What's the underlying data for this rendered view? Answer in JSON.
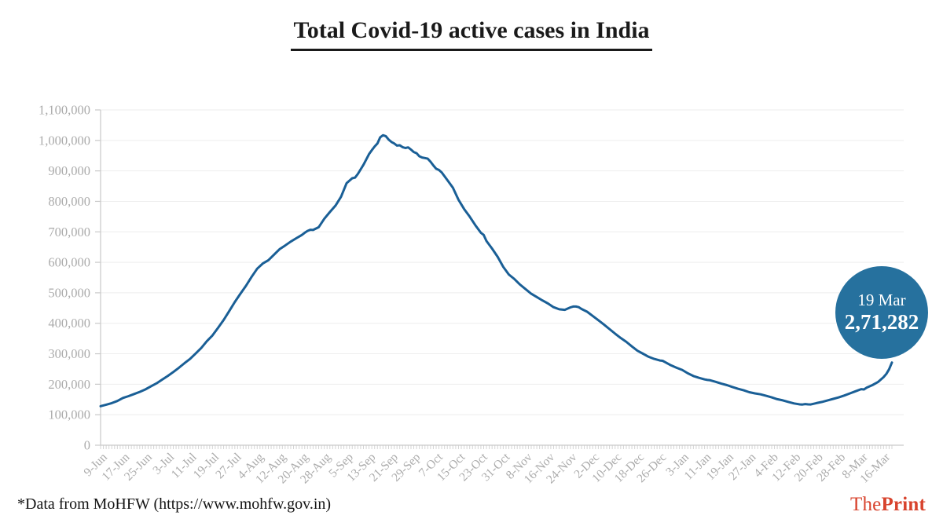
{
  "title": "Total Covid-19 active cases in India",
  "badge": {
    "date": "19 Mar",
    "value": "2,71,282"
  },
  "footer": {
    "source_note": "*Data from MoHFW (https://www.mohfw.gov.in)"
  },
  "logo": {
    "the": "The",
    "print": "Print"
  },
  "colors": {
    "line": "#1A5F96",
    "badge": "#26719E",
    "logo": "#D8432D",
    "grid": "#EEEEEE",
    "axis": "#C9C9C9",
    "minor_tick": "#D4D4D4",
    "tick_label": "#ABABAB",
    "title_text": "#1A1A1A"
  },
  "chart_data": {
    "type": "line",
    "title": "Total Covid-19 active cases in India",
    "xlabel": "",
    "ylabel": "",
    "x_unit": "days since 9-Jun-2020",
    "ylim": [
      0,
      1100000
    ],
    "y_tick_step": 100000,
    "grid": "horizontal",
    "legend": "none",
    "x_tick_interval_days": 8,
    "x_tick_labels": [
      "9-Jun",
      "17-Jun",
      "25-Jun",
      "3-Jul",
      "11-Jul",
      "19-Jul",
      "27-Jul",
      "4-Aug",
      "12-Aug",
      "20-Aug",
      "28-Aug",
      "5-Sep",
      "13-Sep",
      "21-Sep",
      "29-Sep",
      "7-Oct",
      "15-Oct",
      "23-Oct",
      "31-Oct",
      "8-Nov",
      "16-Nov",
      "24-Nov",
      "2-Dec",
      "10-Dec",
      "18-Dec",
      "26-Dec",
      "3-Jan",
      "11-Jan",
      "19-Jan",
      "27-Jan",
      "4-Feb",
      "12-Feb",
      "20-Feb",
      "28-Feb",
      "8-Mar",
      "16-Mar"
    ],
    "series": [
      {
        "name": "Total active cases",
        "x_days": [
          0,
          2,
          4,
          6,
          8,
          10,
          12,
          14,
          16,
          18,
          20,
          22,
          24,
          26,
          28,
          30,
          32,
          34,
          36,
          38,
          40,
          42,
          44,
          46,
          48,
          50,
          52,
          54,
          56,
          58,
          60,
          62,
          64,
          66,
          68,
          70,
          72,
          73,
          74,
          75,
          76,
          78,
          80,
          82,
          84,
          86,
          88,
          90,
          91,
          92,
          94,
          96,
          97,
          98,
          99,
          100,
          101,
          102,
          103,
          104,
          105,
          106,
          107,
          108,
          109,
          110,
          111,
          112,
          113,
          114,
          115,
          116,
          117,
          118,
          119,
          120,
          121,
          122,
          124,
          126,
          128,
          130,
          132,
          134,
          136,
          137,
          138,
          140,
          142,
          144,
          146,
          148,
          150,
          152,
          154,
          156,
          158,
          160,
          162,
          164,
          166,
          168,
          169,
          170,
          171,
          172,
          174,
          176,
          178,
          180,
          182,
          184,
          186,
          188,
          190,
          192,
          194,
          196,
          198,
          200,
          201,
          202,
          204,
          206,
          208,
          210,
          212,
          214,
          216,
          217,
          218,
          220,
          222,
          224,
          226,
          228,
          230,
          232,
          234,
          236,
          238,
          240,
          242,
          244,
          246,
          248,
          250,
          251,
          252,
          253,
          254,
          256,
          258,
          260,
          262,
          264,
          266,
          268,
          270,
          272,
          273,
          274,
          276,
          278,
          280,
          281,
          282,
          283
        ],
        "values": [
          128000,
          133000,
          138000,
          145000,
          155000,
          161000,
          168000,
          175000,
          183000,
          193000,
          203000,
          215000,
          227000,
          240000,
          254000,
          269000,
          283000,
          301000,
          319000,
          341000,
          360000,
          385000,
          411000,
          440000,
          470000,
          497000,
          523000,
          552000,
          579000,
          596000,
          607000,
          625000,
          643000,
          655000,
          668000,
          679000,
          690000,
          697000,
          703000,
          707000,
          706000,
          715000,
          743000,
          765000,
          786000,
          815000,
          860000,
          876000,
          878000,
          890000,
          920000,
          955000,
          968000,
          980000,
          990000,
          1010000,
          1017000,
          1014000,
          1003000,
          995000,
          990000,
          983000,
          984000,
          978000,
          975000,
          977000,
          970000,
          962000,
          958000,
          948000,
          944000,
          942000,
          940000,
          930000,
          918000,
          907000,
          903000,
          895000,
          870000,
          845000,
          805000,
          775000,
          750000,
          722000,
          697000,
          690000,
          670000,
          645000,
          618000,
          585000,
          560000,
          545000,
          527000,
          512000,
          497000,
          486000,
          475000,
          465000,
          453000,
          446000,
          444000,
          452000,
          455000,
          455000,
          453000,
          447000,
          438000,
          424000,
          410000,
          396000,
          381000,
          366000,
          352000,
          339000,
          324000,
          310000,
          300000,
          290000,
          283000,
          278000,
          277000,
          272000,
          262000,
          254000,
          247000,
          236000,
          227000,
          221000,
          216000,
          214000,
          213000,
          208000,
          202000,
          197000,
          191000,
          185000,
          180000,
          174000,
          170000,
          167000,
          162000,
          157000,
          151000,
          147000,
          142000,
          137000,
          134000,
          133500,
          135000,
          134000,
          133800,
          138000,
          142000,
          147000,
          152000,
          157000,
          163000,
          170000,
          177000,
          184000,
          183000,
          189000,
          197000,
          207000,
          223000,
          234000,
          249000,
          271282
        ]
      }
    ],
    "annotation": {
      "label": "19 Mar",
      "value": 271282,
      "value_formatted": "2,71,282"
    }
  }
}
